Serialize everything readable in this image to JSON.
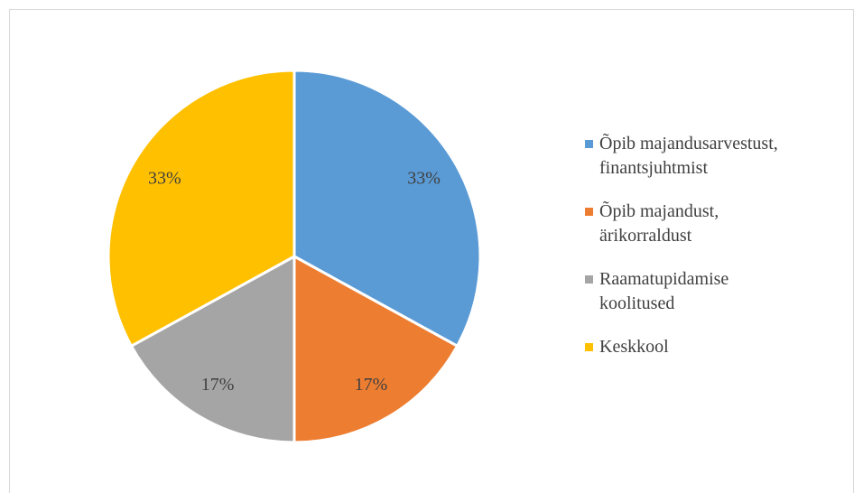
{
  "chart_data": {
    "type": "pie",
    "categories": [
      "Õpib majandusarvestust, finantsjuhtmist",
      "Õpib majandust, ärikorraldust",
      "Raamatupidamise koolitused",
      "Keskkool"
    ],
    "values": [
      33,
      17,
      17,
      33
    ],
    "value_labels": [
      "33%",
      "17%",
      "17%",
      "33%"
    ],
    "colors": [
      "#5b9bd5",
      "#ed7d31",
      "#a5a5a5",
      "#ffc000"
    ],
    "legend": "right"
  }
}
